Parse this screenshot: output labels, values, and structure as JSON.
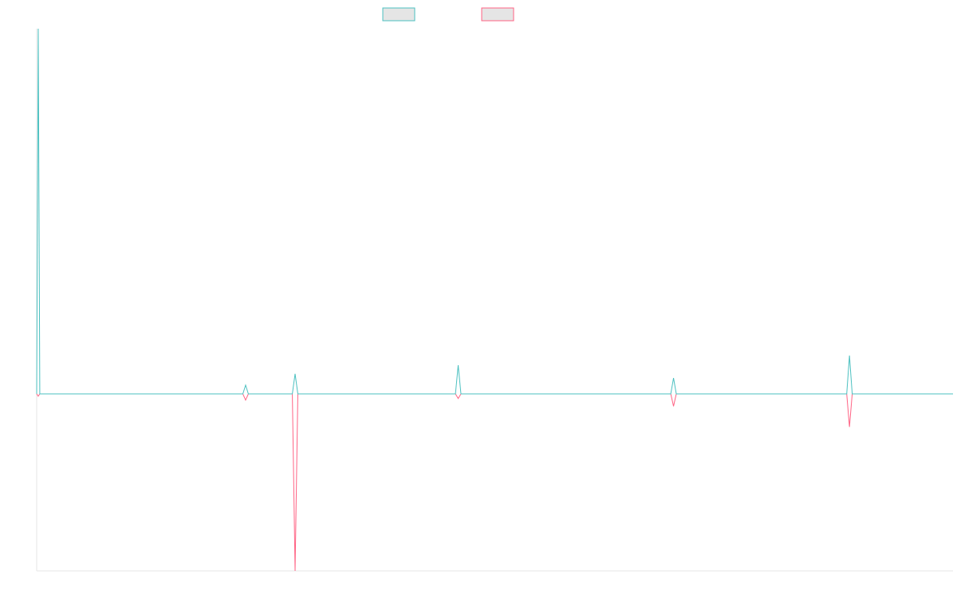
{
  "chart_data": {
    "type": "line",
    "title": "",
    "xlabel": "",
    "ylabel": "",
    "grid": false,
    "legend": {
      "placement": "top-center",
      "entries": [
        {
          "series_index": 0,
          "label": ""
        },
        {
          "series_index": 1,
          "label": ""
        }
      ]
    },
    "x_range": [
      0,
      1
    ],
    "y_range": [
      -1,
      2
    ],
    "series": [
      {
        "color": "#4bc0c0",
        "fill": "#e5e5e5",
        "points": [
          {
            "x": 0.0,
            "y": 0.0
          },
          {
            "x": 0.0017,
            "y": 2.0
          },
          {
            "x": 0.0034,
            "y": 0.0
          },
          {
            "x": 0.225,
            "y": 0.0
          },
          {
            "x": 0.228,
            "y": 0.048
          },
          {
            "x": 0.231,
            "y": 0.0
          },
          {
            "x": 0.279,
            "y": 0.0
          },
          {
            "x": 0.282,
            "y": 0.11
          },
          {
            "x": 0.285,
            "y": 0.0
          },
          {
            "x": 0.457,
            "y": 0.0
          },
          {
            "x": 0.46,
            "y": 0.157
          },
          {
            "x": 0.463,
            "y": 0.0
          },
          {
            "x": 0.692,
            "y": 0.0
          },
          {
            "x": 0.695,
            "y": 0.087
          },
          {
            "x": 0.698,
            "y": 0.0
          },
          {
            "x": 0.884,
            "y": 0.0
          },
          {
            "x": 0.887,
            "y": 0.21
          },
          {
            "x": 0.89,
            "y": 0.0
          },
          {
            "x": 1.0,
            "y": 0.0
          }
        ]
      },
      {
        "color": "#ff6384",
        "fill": "#e5e5e5",
        "points": [
          {
            "x": 0.0,
            "y": 0.0
          },
          {
            "x": 0.0017,
            "y": -0.013
          },
          {
            "x": 0.0034,
            "y": 0.0
          },
          {
            "x": 0.225,
            "y": 0.0
          },
          {
            "x": 0.228,
            "y": -0.035
          },
          {
            "x": 0.231,
            "y": 0.0
          },
          {
            "x": 0.279,
            "y": 0.0
          },
          {
            "x": 0.282,
            "y": -1.0
          },
          {
            "x": 0.285,
            "y": 0.0
          },
          {
            "x": 0.457,
            "y": 0.0
          },
          {
            "x": 0.46,
            "y": -0.026
          },
          {
            "x": 0.463,
            "y": 0.0
          },
          {
            "x": 0.692,
            "y": 0.0
          },
          {
            "x": 0.695,
            "y": -0.07
          },
          {
            "x": 0.698,
            "y": 0.0
          },
          {
            "x": 0.884,
            "y": 0.0
          },
          {
            "x": 0.887,
            "y": -0.187
          },
          {
            "x": 0.89,
            "y": 0.0
          },
          {
            "x": 1.0,
            "y": 0.0
          }
        ]
      }
    ]
  }
}
